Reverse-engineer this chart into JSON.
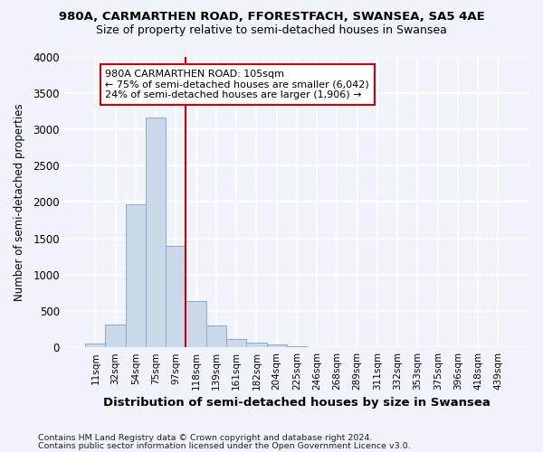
{
  "title_line1": "980A, CARMARTHEN ROAD, FFORESTFACH, SWANSEA, SA5 4AE",
  "title_line2": "Size of property relative to semi-detached houses in Swansea",
  "xlabel": "Distribution of semi-detached houses by size in Swansea",
  "ylabel": "Number of semi-detached properties",
  "annotation_title": "980A CARMARTHEN ROAD: 105sqm",
  "annotation_line1": "← 75% of semi-detached houses are smaller (6,042)",
  "annotation_line2": "24% of semi-detached houses are larger (1,906) →",
  "footer_line1": "Contains HM Land Registry data © Crown copyright and database right 2024.",
  "footer_line2": "Contains public sector information licensed under the Open Government Licence v3.0.",
  "bar_labels": [
    "11sqm",
    "32sqm",
    "54sqm",
    "75sqm",
    "97sqm",
    "118sqm",
    "139sqm",
    "161sqm",
    "182sqm",
    "204sqm",
    "225sqm",
    "246sqm",
    "268sqm",
    "289sqm",
    "311sqm",
    "332sqm",
    "353sqm",
    "375sqm",
    "396sqm",
    "418sqm",
    "439sqm"
  ],
  "bar_values": [
    55,
    315,
    1970,
    3165,
    1400,
    640,
    300,
    110,
    65,
    45,
    20,
    8,
    5,
    3,
    2,
    1,
    1,
    1,
    0,
    0,
    0
  ],
  "bar_color": "#c9d9ea",
  "bar_edge_color": "#8aaac8",
  "highlight_color": "#cc0000",
  "annotation_box_color": "#cc0000",
  "property_bin_index": 4,
  "ylim": [
    0,
    4000
  ],
  "yticks": [
    0,
    500,
    1000,
    1500,
    2000,
    2500,
    3000,
    3500,
    4000
  ],
  "bg_color": "#f0f4fa",
  "plot_bg_color": "#f0f4fa",
  "grid_color": "#ffffff"
}
